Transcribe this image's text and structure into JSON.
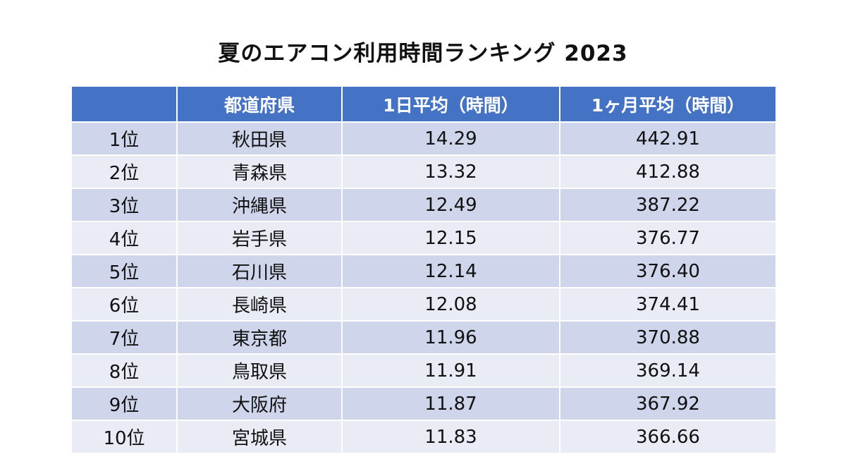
{
  "chart_data": {
    "type": "table",
    "title": "夏のエアコン利用時間ランキング  2023",
    "columns": [
      "",
      "都道府県",
      "1日平均（時間）",
      "1ヶ月平均（時間）"
    ],
    "rows": [
      {
        "rank": "1位",
        "prefecture": "秋田県",
        "daily": "14.29",
        "monthly": "442.91"
      },
      {
        "rank": "2位",
        "prefecture": "青森県",
        "daily": "13.32",
        "monthly": "412.88"
      },
      {
        "rank": "3位",
        "prefecture": "沖縄県",
        "daily": "12.49",
        "monthly": "387.22"
      },
      {
        "rank": "4位",
        "prefecture": "岩手県",
        "daily": "12.15",
        "monthly": "376.77"
      },
      {
        "rank": "5位",
        "prefecture": "石川県",
        "daily": "12.14",
        "monthly": "376.40"
      },
      {
        "rank": "6位",
        "prefecture": "長崎県",
        "daily": "12.08",
        "monthly": "374.41"
      },
      {
        "rank": "7位",
        "prefecture": "東京都",
        "daily": "11.96",
        "monthly": "370.88"
      },
      {
        "rank": "8位",
        "prefecture": "鳥取県",
        "daily": "11.91",
        "monthly": "369.14"
      },
      {
        "rank": "9位",
        "prefecture": "大阪府",
        "daily": "11.87",
        "monthly": "367.92"
      },
      {
        "rank": "10位",
        "prefecture": "宮城県",
        "daily": "11.83",
        "monthly": "366.66"
      }
    ]
  },
  "colors": {
    "header_bg": "#4472c4",
    "header_text": "#ffffff",
    "row_dark": "#cfd5ea",
    "row_light": "#e9ebf5"
  }
}
